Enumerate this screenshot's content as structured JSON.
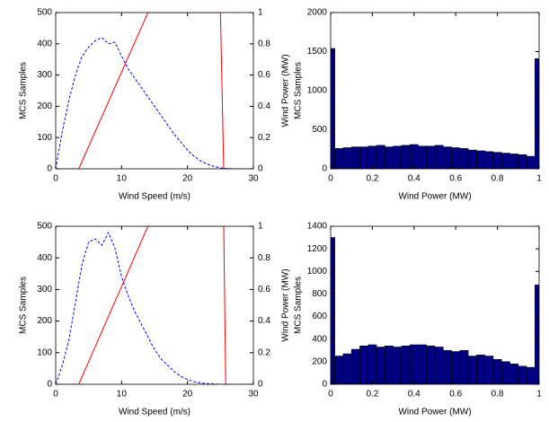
{
  "chart_data": [
    {
      "type": "line",
      "x_label": "Wind Speed (m/s)",
      "y_label": "MCS Samples",
      "y2_label": "Wind Power (MW)",
      "xlim": [
        0,
        30
      ],
      "xticks": [
        0,
        10,
        20,
        30
      ],
      "ylim": [
        0,
        500
      ],
      "yticks": [
        0,
        100,
        200,
        300,
        400,
        500
      ],
      "y2lim": [
        0,
        1
      ],
      "y2ticks": [
        0,
        0.2,
        0.4,
        0.6,
        0.8,
        1
      ],
      "series": [
        {
          "name": "MCS Samples",
          "color": "#0000ff",
          "line_style": "dashed",
          "x": [
            0,
            1,
            2,
            3,
            4,
            5,
            6,
            7,
            8,
            9,
            10,
            11,
            12,
            13,
            14,
            15,
            16,
            17,
            18,
            19,
            20,
            21,
            22,
            23,
            24,
            25,
            26,
            27,
            28,
            29,
            30
          ],
          "values": [
            0,
            120,
            220,
            300,
            360,
            390,
            410,
            420,
            400,
            405,
            360,
            320,
            290,
            260,
            230,
            200,
            170,
            140,
            110,
            85,
            60,
            40,
            25,
            15,
            8,
            3,
            1,
            0,
            0,
            0,
            0
          ]
        },
        {
          "name": "Wind Power",
          "color": "#ff0000",
          "line_style": "solid",
          "axis": "y2",
          "x": [
            0,
            3.5,
            14,
            25,
            25.5,
            30
          ],
          "values": [
            0,
            0,
            1,
            1,
            0,
            0
          ]
        }
      ]
    },
    {
      "type": "histogram",
      "x_label": "Wind Power (MW)",
      "y_label": "MCS Samples",
      "color": "#000080",
      "xlim": [
        0,
        1
      ],
      "xticks": [
        0,
        0.2,
        0.4,
        0.6,
        0.8,
        1
      ],
      "ylim": [
        0,
        2000
      ],
      "yticks": [
        0,
        500,
        1000,
        1500,
        2000
      ],
      "bins": [
        -0.02,
        0.02,
        0.06,
        0.1,
        0.14,
        0.18,
        0.22,
        0.26,
        0.3,
        0.34,
        0.38,
        0.42,
        0.46,
        0.5,
        0.54,
        0.58,
        0.62,
        0.66,
        0.7,
        0.74,
        0.78,
        0.82,
        0.86,
        0.9,
        0.94,
        0.98,
        1.02
      ],
      "values": [
        1540,
        260,
        270,
        280,
        280,
        290,
        300,
        280,
        290,
        300,
        310,
        290,
        290,
        300,
        280,
        270,
        260,
        240,
        230,
        220,
        210,
        200,
        190,
        180,
        160,
        1410
      ]
    },
    {
      "type": "line",
      "x_label": "Wind Speed (m/s)",
      "y_label": "MCS Samples",
      "y2_label": "Wind Power (MW)",
      "xlim": [
        0,
        30
      ],
      "xticks": [
        0,
        10,
        20,
        30
      ],
      "ylim": [
        0,
        500
      ],
      "yticks": [
        0,
        100,
        200,
        300,
        400,
        500
      ],
      "y2lim": [
        0,
        1
      ],
      "y2ticks": [
        0,
        0.2,
        0.4,
        0.6,
        0.8,
        1
      ],
      "series": [
        {
          "name": "MCS Samples",
          "color": "#0000ff",
          "line_style": "dashed",
          "x": [
            0,
            1,
            2,
            3,
            4,
            5,
            6,
            7,
            8,
            9,
            10,
            11,
            12,
            13,
            14,
            15,
            16,
            17,
            18,
            19,
            20,
            21,
            22,
            23,
            24,
            25,
            26,
            27,
            28,
            29,
            30
          ],
          "values": [
            0,
            60,
            140,
            260,
            380,
            450,
            460,
            440,
            480,
            430,
            340,
            280,
            230,
            190,
            150,
            110,
            80,
            60,
            40,
            25,
            15,
            8,
            4,
            2,
            1,
            0,
            0,
            0,
            0,
            0,
            0
          ]
        },
        {
          "name": "Wind Power",
          "color": "#ff0000",
          "line_style": "solid",
          "axis": "y2",
          "x": [
            0,
            3.5,
            14,
            25.5,
            25.8,
            30
          ],
          "values": [
            0,
            0,
            1,
            1,
            0,
            0
          ]
        }
      ]
    },
    {
      "type": "histogram",
      "x_label": "Wind Power (MW)",
      "y_label": "MCS Samples",
      "color": "#000080",
      "xlim": [
        0,
        1
      ],
      "xticks": [
        0,
        0.2,
        0.4,
        0.6,
        0.8,
        1
      ],
      "ylim": [
        0,
        1400
      ],
      "yticks": [
        0,
        200,
        400,
        600,
        800,
        1000,
        1200,
        1400
      ],
      "bins": [
        -0.02,
        0.02,
        0.06,
        0.1,
        0.14,
        0.18,
        0.22,
        0.26,
        0.3,
        0.34,
        0.38,
        0.42,
        0.46,
        0.5,
        0.54,
        0.58,
        0.62,
        0.66,
        0.7,
        0.74,
        0.78,
        0.82,
        0.86,
        0.9,
        0.94,
        0.98,
        1.02
      ],
      "values": [
        1300,
        250,
        270,
        310,
        340,
        350,
        330,
        340,
        330,
        340,
        350,
        350,
        340,
        330,
        300,
        290,
        300,
        250,
        260,
        250,
        220,
        200,
        180,
        160,
        150,
        880
      ]
    }
  ]
}
